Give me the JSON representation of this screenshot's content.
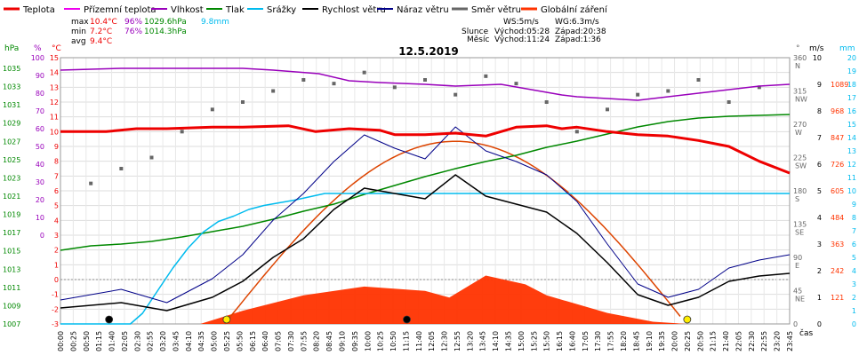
{
  "chart_data": {
    "type": "line",
    "title": "12.5.2019",
    "legend": [
      {
        "name": "Teplota",
        "color": "#ee0000"
      },
      {
        "name": "Přízemní teplota",
        "color": "#ee00ee"
      },
      {
        "name": "Vlhkost",
        "color": "#9900bb"
      },
      {
        "name": "Tlak",
        "color": "#008800"
      },
      {
        "name": "Srážky",
        "color": "#00bbee"
      },
      {
        "name": "Rychlost větru",
        "color": "#000000"
      },
      {
        "name": "Náraz větru",
        "color": "#000088"
      },
      {
        "name": "Směr větru",
        "color": "#666666"
      },
      {
        "name": "Globální záření",
        "color": "#ff3300"
      }
    ],
    "stats": {
      "max_label": "max",
      "max_temp": "10.4°C",
      "max_hum": "96%",
      "max_press": "1029.6hPa",
      "max_rain": "9.8mm",
      "min_label": "min",
      "min_temp": "7.2°C",
      "min_hum": "76%",
      "min_press": "1014.3hPa",
      "avg_label": "avg",
      "avg_temp": "9.4°C"
    },
    "wind_sun": {
      "ws": "WS:5m/s",
      "wg": "WG:6.3m/s",
      "sun_label": "Slunce",
      "sun_rise": "Východ:05:28",
      "sun_set": "Západ:20:38",
      "moon_label": "Měsíc",
      "moon_rise": "Východ:11:24",
      "moon_set": "Západ:1:36"
    },
    "axes": {
      "hpa_unit": "hPa",
      "hpa_ticks": [
        "1035",
        "1033",
        "1031",
        "1029",
        "1027",
        "1025",
        "1023",
        "1021",
        "1019",
        "1017",
        "1015",
        "1013",
        "1011",
        "1009",
        "1007"
      ],
      "pct_unit": "%",
      "pct_ticks": [
        "100",
        "90",
        "80",
        "70",
        "60",
        "50",
        "40",
        "30",
        "20",
        "10",
        "0"
      ],
      "deg_unit": "°C",
      "deg_ticks": [
        "15",
        "14",
        "13",
        "12",
        "11",
        "10",
        "9",
        "8",
        "7",
        "6",
        "5",
        "4",
        "3",
        "2",
        "1",
        "0",
        "-1",
        "-2",
        "-3"
      ],
      "dir_unit": "°",
      "dir_ticks": [
        {
          "t": "360",
          "s": "N"
        },
        {
          "t": "315",
          "s": "NW"
        },
        {
          "t": "270",
          "s": "W"
        },
        {
          "t": "225",
          "s": "SW"
        },
        {
          "t": "180",
          "s": "S"
        },
        {
          "t": "135",
          "s": "SE"
        },
        {
          "t": "90",
          "s": "E"
        },
        {
          "t": "45",
          "s": "NE"
        },
        {
          "t": "0",
          "s": ""
        }
      ],
      "ms_unit": "m/s",
      "ms_ticks": [
        "10",
        "9",
        "8",
        "7",
        "6",
        "5",
        "4",
        "3",
        "2",
        "1",
        "0"
      ],
      "mm_unit": "mm",
      "mm_ticks": [
        "20",
        "19",
        "18",
        "17",
        "16",
        "15",
        "14",
        "13",
        "12",
        "11",
        "10",
        "9",
        "8",
        "7",
        "6",
        "5",
        "4",
        "3",
        "2",
        "1",
        "0"
      ],
      "rad_ticks": [
        "1089",
        "968",
        "847",
        "726",
        "605",
        "484",
        "363",
        "242",
        "121"
      ],
      "time_unit": "čas",
      "time_ticks": [
        "00:00",
        "00:25",
        "00:50",
        "01:15",
        "01:40",
        "02:05",
        "02:30",
        "02:55",
        "03:20",
        "03:45",
        "04:10",
        "04:35",
        "05:00",
        "05:25",
        "05:50",
        "06:15",
        "06:40",
        "07:05",
        "07:30",
        "07:55",
        "08:20",
        "08:45",
        "09:10",
        "09:35",
        "10:00",
        "10:25",
        "10:50",
        "11:15",
        "11:40",
        "12:05",
        "12:30",
        "12:55",
        "13:20",
        "13:45",
        "14:10",
        "14:35",
        "15:00",
        "15:25",
        "15:50",
        "16:15",
        "16:40",
        "17:05",
        "17:30",
        "17:55",
        "18:20",
        "18:45",
        "19:10",
        "19:35",
        "20:00",
        "20:25",
        "20:50",
        "21:15",
        "21:40",
        "22:05",
        "22:30",
        "22:55",
        "23:20",
        "23:45"
      ]
    },
    "series": [
      {
        "name": "Teplota",
        "unit": "°C",
        "x_hours": [
          0,
          1.5,
          2.5,
          3.5,
          5,
          6,
          7.5,
          8.4,
          9.5,
          10.5,
          11,
          12,
          13,
          14,
          15,
          16,
          16.5,
          17,
          18,
          19,
          20,
          21,
          22,
          23,
          24
        ],
        "y": [
          10,
          10,
          10.2,
          10.2,
          10.3,
          10.3,
          10.4,
          10,
          10.2,
          10.1,
          9.8,
          9.8,
          9.9,
          9.7,
          10.3,
          10.4,
          10.2,
          10.3,
          10,
          9.8,
          9.7,
          9.4,
          9,
          8,
          7.2
        ]
      },
      {
        "name": "Vlhkost",
        "unit": "%",
        "x_hours": [
          0,
          2,
          4,
          5,
          6,
          7,
          8.5,
          9.5,
          10.5,
          12,
          13,
          14.5,
          15.5,
          16.5,
          17,
          18,
          19,
          20,
          21,
          22,
          23,
          24
        ],
        "y": [
          93,
          94,
          94,
          94,
          94,
          93,
          91,
          87,
          86,
          85,
          84,
          85,
          82,
          79,
          78,
          77,
          76,
          78,
          80,
          82,
          84,
          85
        ]
      },
      {
        "name": "Tlak",
        "unit": "hPa",
        "x_hours": [
          0,
          1,
          2,
          3,
          4,
          5,
          6,
          7,
          8,
          9,
          10,
          11,
          12,
          13,
          14,
          15,
          16,
          17,
          18,
          19,
          20,
          21,
          22,
          23,
          24
        ],
        "y": [
          1014.3,
          1014.8,
          1015,
          1015.3,
          1015.8,
          1016.4,
          1017,
          1017.8,
          1018.7,
          1019.5,
          1020.6,
          1021.6,
          1022.6,
          1023.5,
          1024.3,
          1025,
          1025.9,
          1026.6,
          1027.4,
          1028.2,
          1028.8,
          1029.2,
          1029.4,
          1029.5,
          1029.6
        ]
      },
      {
        "name": "Srážky",
        "unit": "mm",
        "x_hours": [
          0,
          2.3,
          2.7,
          3.2,
          3.7,
          4.2,
          4.7,
          5.2,
          5.7,
          6.2,
          6.7,
          7.2,
          7.7,
          8.3,
          8.7,
          24
        ],
        "y": [
          0,
          0,
          0.8,
          2.5,
          4.2,
          5.7,
          6.9,
          7.7,
          8.1,
          8.6,
          8.9,
          9.1,
          9.3,
          9.6,
          9.8,
          9.8
        ]
      },
      {
        "name": "Rychlost větru",
        "unit": "m/s",
        "x_hours": [
          0,
          2,
          3.5,
          5,
          6,
          7,
          8,
          9,
          10,
          11,
          12,
          13,
          14,
          15,
          16,
          17,
          18,
          19,
          20,
          21,
          22,
          23,
          24
        ],
        "y": [
          0.6,
          0.8,
          0.5,
          1,
          1.6,
          2.5,
          3.2,
          4.3,
          5.1,
          4.9,
          4.7,
          5.6,
          4.8,
          4.5,
          4.2,
          3.4,
          2.3,
          1.1,
          0.7,
          1,
          1.6,
          1.8,
          1.9
        ]
      },
      {
        "name": "Náraz větru",
        "unit": "m/s",
        "x_hours": [
          0,
          2,
          3.5,
          5,
          6,
          7,
          8,
          9,
          10,
          11,
          12,
          13,
          14,
          15,
          16,
          17,
          18,
          19,
          20,
          21,
          22,
          23,
          24
        ],
        "y": [
          0.9,
          1.3,
          0.8,
          1.7,
          2.6,
          3.9,
          4.9,
          6.1,
          7.1,
          6.6,
          6.2,
          7.4,
          6.5,
          6.1,
          5.6,
          4.6,
          3,
          1.5,
          1,
          1.3,
          2.1,
          2.4,
          2.6
        ]
      },
      {
        "name": "Globální záření",
        "unit": "W/m²",
        "x_hours": [
          4.6,
          6,
          8,
          10,
          12,
          12.8,
          14,
          15.3,
          16,
          18,
          19.5,
          20.6
        ],
        "y": [
          0,
          60,
          130,
          170,
          150,
          120,
          220,
          180,
          130,
          50,
          10,
          0
        ]
      }
    ],
    "wind_direction_deg": [
      {
        "h": 1,
        "d": 190
      },
      {
        "h": 2,
        "d": 210
      },
      {
        "h": 3,
        "d": 225
      },
      {
        "h": 4,
        "d": 260
      },
      {
        "h": 5,
        "d": 290
      },
      {
        "h": 6,
        "d": 300
      },
      {
        "h": 7,
        "d": 315
      },
      {
        "h": 8,
        "d": 330
      },
      {
        "h": 9,
        "d": 325
      },
      {
        "h": 10,
        "d": 340
      },
      {
        "h": 11,
        "d": 320
      },
      {
        "h": 12,
        "d": 330
      },
      {
        "h": 13,
        "d": 310
      },
      {
        "h": 14,
        "d": 335
      },
      {
        "h": 15,
        "d": 325
      },
      {
        "h": 16,
        "d": 300
      },
      {
        "h": 17,
        "d": 260
      },
      {
        "h": 18,
        "d": 290
      },
      {
        "h": 19,
        "d": 310
      },
      {
        "h": 20,
        "d": 315
      },
      {
        "h": 21,
        "d": 330
      },
      {
        "h": 22,
        "d": 300
      },
      {
        "h": 23,
        "d": 320
      }
    ]
  }
}
